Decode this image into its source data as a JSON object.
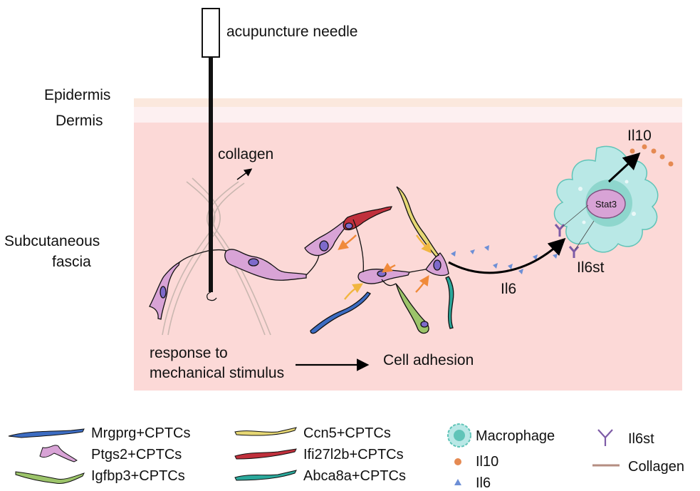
{
  "needle_label": "acupuncture needle",
  "layers": {
    "epidermis": "Epidermis",
    "dermis": "Dermis",
    "subcutaneous_line1": "Subcutaneous",
    "subcutaneous_line2": "fascia"
  },
  "labels": {
    "collagen": "collagen",
    "il10": "Il10",
    "il6": "Il6",
    "il6st": "Il6st",
    "stat3": "Stat3",
    "response_line1": "response to",
    "response_line2": "mechanical stimulus",
    "cell_adhesion": "Cell adhesion"
  },
  "legend": {
    "mrgprg": "Mrgprg+CPTCs",
    "ptgs2": "Ptgs2+CPTCs",
    "igfbp3": "Igfbp3+CPTCs",
    "ccn5": "Ccn5+CPTCs",
    "ifi27l2b": "Ifi27l2b+CPTCs",
    "abca8a": "Abca8a+CPTCs",
    "macrophage": "Macrophage",
    "il10": "Il10",
    "il6": "Il6",
    "il6st": "Il6st",
    "collagen": "Collagen"
  },
  "colors": {
    "epidermis": "#fbe8dd",
    "dermis": "#fdf0f1",
    "fascia": "#fcd9d7",
    "mrgprg": "#3c6cc2",
    "ptgs2": "#d8a3d6",
    "igfbp3": "#9cc46a",
    "ccn5": "#e6d774",
    "ifi27l2b": "#c0303c",
    "abca8a": "#2aa89b",
    "macrophage": "#b9e8e6",
    "il10": "#e58a52",
    "il6": "#6d8fd6",
    "il6st": "#7d5ba6",
    "collagen": "#b58e82"
  }
}
